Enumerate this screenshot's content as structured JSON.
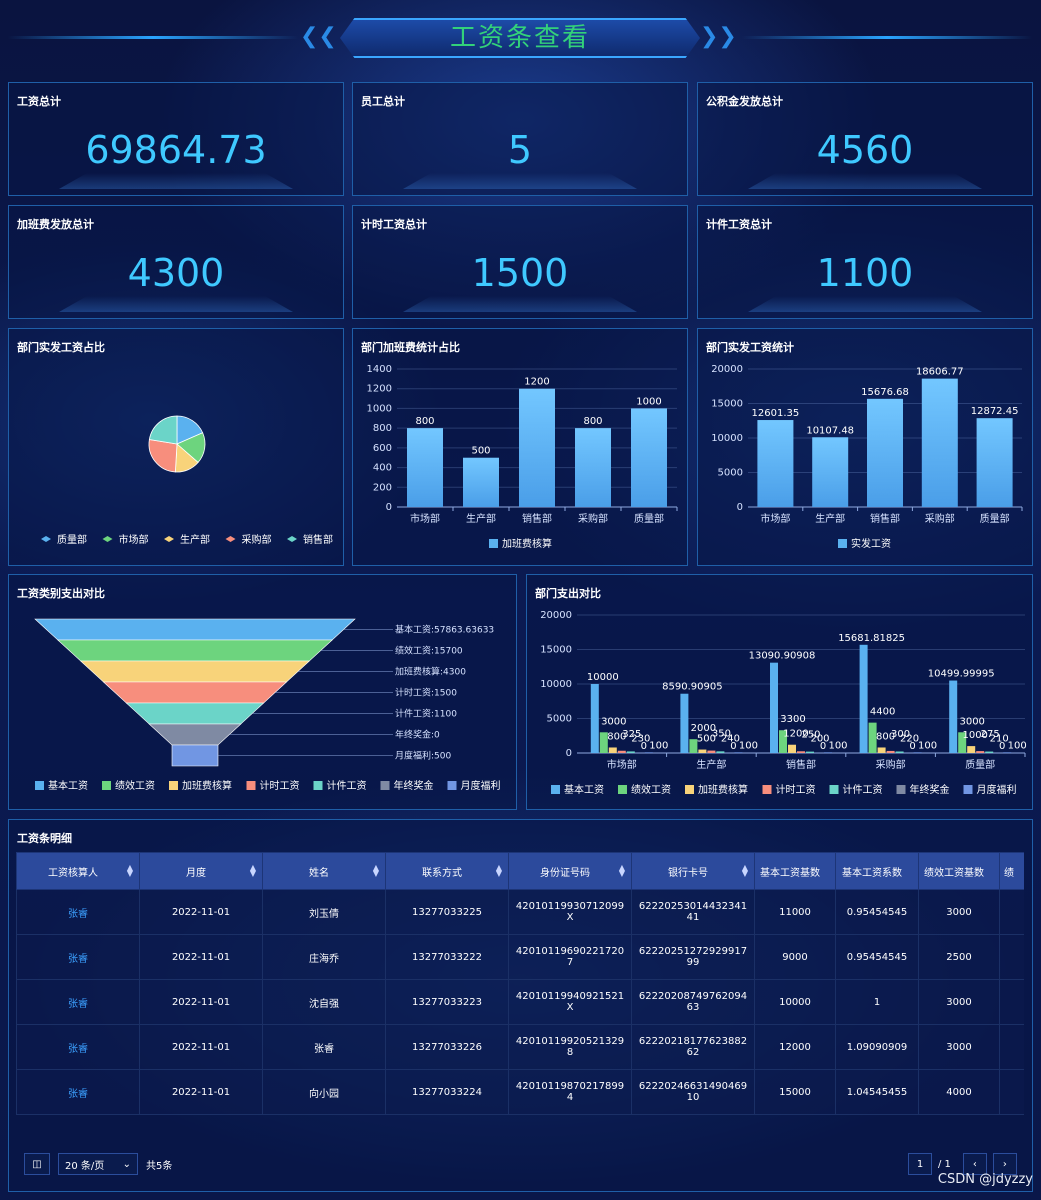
{
  "header": {
    "title": "工资条查看"
  },
  "stats": [
    {
      "label": "工资总计",
      "value": "69864.73"
    },
    {
      "label": "员工总计",
      "value": "5"
    },
    {
      "label": "公积金发放总计",
      "value": "4560"
    },
    {
      "label": "加班费发放总计",
      "value": "4300"
    },
    {
      "label": "计时工资总计",
      "value": "1500"
    },
    {
      "label": "计件工资总计",
      "value": "1100"
    }
  ],
  "panels": {
    "pie_title": "部门实发工资占比",
    "ot_title": "部门加班费统计占比",
    "dept_title": "部门实发工资统计",
    "funnel_title": "工资类别支出对比",
    "compare_title": "部门支出对比",
    "table_title": "工资条明细"
  },
  "colors": {
    "blue": "#5ab1ef",
    "green": "#6dd47e",
    "yellow": "#f8d37a",
    "red": "#f78e7d",
    "cyan": "#6bd4c8",
    "gray": "#7f8aa3",
    "indigo": "#7196e3",
    "accent": "#3fc9ff",
    "title": "#33d17a"
  },
  "chart_data": [
    {
      "type": "pie",
      "title": "部门实发工资占比",
      "categories": [
        "质量部",
        "市场部",
        "生产部",
        "采购部",
        "销售部"
      ],
      "values": [
        12872.45,
        12601.35,
        10107.48,
        18606.77,
        15676.68
      ]
    },
    {
      "type": "bar",
      "title": "部门加班费统计占比",
      "categories": [
        "市场部",
        "生产部",
        "销售部",
        "采购部",
        "质量部"
      ],
      "series": [
        {
          "name": "加班费核算",
          "values": [
            800,
            500,
            1200,
            800,
            1000
          ]
        }
      ],
      "ylim": [
        0,
        1400
      ],
      "yticks": [
        0,
        200,
        400,
        600,
        800,
        1000,
        1200,
        1400
      ],
      "grid": true,
      "legend": "bottom"
    },
    {
      "type": "bar",
      "title": "部门实发工资统计",
      "categories": [
        "市场部",
        "生产部",
        "销售部",
        "采购部",
        "质量部"
      ],
      "series": [
        {
          "name": "实发工资",
          "values": [
            12601.35,
            10107.48,
            15676.68,
            18606.77,
            12872.45
          ]
        }
      ],
      "ylim": [
        0,
        20000
      ],
      "yticks": [
        0,
        5000,
        10000,
        15000,
        20000
      ],
      "grid": true,
      "legend": "bottom"
    },
    {
      "type": "funnel",
      "title": "工资类别支出对比",
      "categories": [
        "基本工资",
        "绩效工资",
        "加班费核算",
        "计时工资",
        "计件工资",
        "年终奖金",
        "月度福利"
      ],
      "labels": [
        "基本工资:57863.63633",
        "绩效工资:15700",
        "加班费核算:4300",
        "计时工资:1500",
        "计件工资:1100",
        "年终奖金:0",
        "月度福利:500"
      ],
      "values": [
        57863.63633,
        15700,
        4300,
        1500,
        1100,
        0,
        500
      ]
    },
    {
      "type": "bar",
      "title": "部门支出对比",
      "categories": [
        "市场部",
        "生产部",
        "销售部",
        "采购部",
        "质量部"
      ],
      "series": [
        {
          "name": "基本工资",
          "values": [
            10000,
            8590.90905,
            13090.90908,
            15681.81825,
            10499.99995
          ],
          "labels": [
            "10000",
            "8590.90905",
            "13090.90908",
            "15681.81825",
            "10499.99995"
          ]
        },
        {
          "name": "绩效工资",
          "values": [
            3000,
            2000,
            3300,
            4400,
            3000
          ],
          "labels": [
            "3000",
            "2000",
            "3300",
            "4400",
            "3000"
          ]
        },
        {
          "name": "加班费核算",
          "values": [
            800,
            500,
            1200,
            800,
            1000
          ],
          "labels": [
            "800",
            "500",
            "1200",
            "800",
            "1000"
          ]
        },
        {
          "name": "计时工资",
          "values": [
            325,
            350,
            250,
            300,
            275
          ],
          "labels": [
            "325",
            "350",
            "250",
            "300",
            "275"
          ]
        },
        {
          "name": "计件工资",
          "values": [
            230,
            240,
            200,
            220,
            210
          ],
          "labels": [
            "230",
            "240",
            "200",
            "220",
            "210"
          ]
        },
        {
          "name": "年终奖金",
          "values": [
            0,
            0,
            0,
            0,
            0
          ],
          "labels": [
            "0",
            "0",
            "0",
            "0",
            "0"
          ]
        },
        {
          "name": "月度福利",
          "values": [
            100,
            100,
            100,
            100,
            100
          ],
          "labels": [
            "100",
            "100",
            "100",
            "100",
            "100"
          ]
        }
      ],
      "ylim": [
        0,
        20000
      ],
      "yticks": [
        0,
        5000,
        10000,
        15000,
        20000
      ],
      "grid": true,
      "legend": "bottom"
    }
  ],
  "table": {
    "columns": [
      "工资核算人",
      "月度",
      "姓名",
      "联系方式",
      "身份证号码",
      "银行卡号",
      "基本工资基数",
      "基本工资系数",
      "绩效工资基数",
      "绩"
    ],
    "rows": [
      [
        "张睿",
        "2022-11-01",
        "刘玉倩",
        "13277033225",
        "42010119930712099X",
        "6222025301443234141",
        "11000",
        "0.95454545",
        "3000"
      ],
      [
        "张睿",
        "2022-11-01",
        "庄海乔",
        "13277033222",
        "420101196902217207",
        "6222025127292991799",
        "9000",
        "0.95454545",
        "2500"
      ],
      [
        "张睿",
        "2022-11-01",
        "沈自强",
        "13277033223",
        "42010119940921521X",
        "6222020874976209463",
        "10000",
        "1",
        "3000"
      ],
      [
        "张睿",
        "2022-11-01",
        "张睿",
        "13277033226",
        "420101199205213298",
        "6222021817762388262",
        "12000",
        "1.09090909",
        "3000"
      ],
      [
        "张睿",
        "2022-11-01",
        "向小园",
        "13277033224",
        "420101198702178994",
        "6222024663149046910",
        "15000",
        "1.04545455",
        "4000"
      ]
    ]
  },
  "pager": {
    "page_size": "20 条/页",
    "total": "共5条",
    "current": "1",
    "pages": "/ 1"
  },
  "watermark": "CSDN @jdyzzy"
}
